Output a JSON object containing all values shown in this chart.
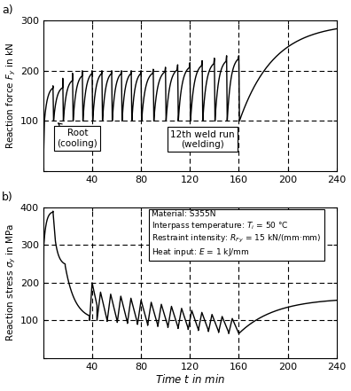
{
  "fig_width": 3.96,
  "fig_height": 4.41,
  "dpi": 100,
  "xlim": [
    0,
    240
  ],
  "xticks": [
    0,
    40,
    80,
    120,
    160,
    200,
    240
  ],
  "xlabel": "Time $t$ in min",
  "panel_a": {
    "label": "a)",
    "ylabel": "Reaction force $F_y$ in kN",
    "ylim": [
      0,
      300
    ],
    "yticks": [
      0,
      100,
      200,
      300
    ],
    "hlines": [
      100,
      200
    ],
    "vlines": [
      40,
      80,
      120,
      160,
      200
    ],
    "annotation1": "Root\n(cooling)",
    "annotation2": "12th weld run\n(welding)"
  },
  "panel_b": {
    "label": "b)",
    "ylabel": "Reaction stress $\\sigma_y$ in MPa",
    "ylim": [
      0,
      400
    ],
    "yticks": [
      0,
      100,
      200,
      300,
      400
    ],
    "hlines": [
      100,
      200,
      300
    ],
    "vlines": [
      40,
      80,
      120,
      160,
      200
    ],
    "info_text": "Material: S355N\nInterpass temperature: $T_i$ = 50 °C\nRestraint intensity: $R_{Fy}$ = 15 kN/(mm·mm)\nHeat input: $E$ = 1 kJ/mm"
  }
}
